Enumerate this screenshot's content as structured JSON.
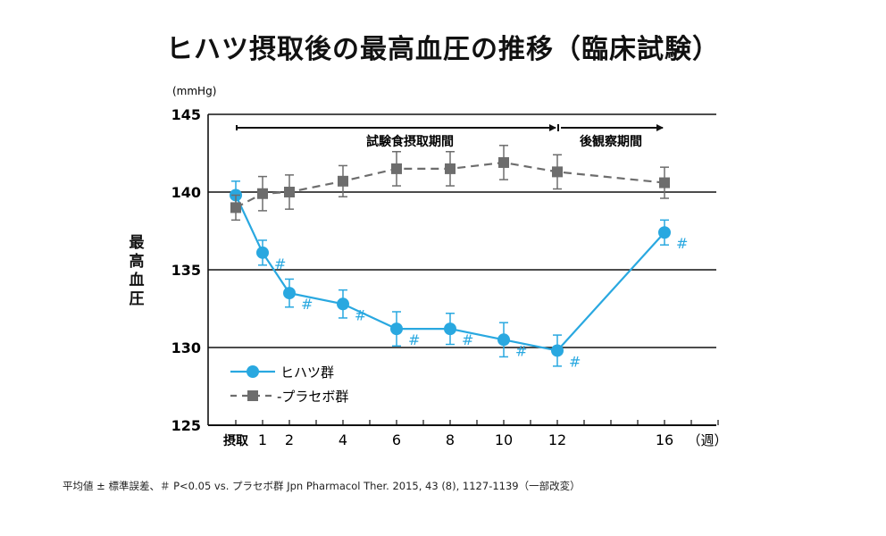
{
  "chart_data": {
    "type": "line",
    "title": "ヒハツ摂取後の最高血圧の推移（臨床試験）",
    "ylabel": "最高血圧",
    "yunit": "(mmHg)",
    "xunit": "（週）",
    "ylim": [
      125,
      145
    ],
    "yticks": [
      125,
      130,
      135,
      140,
      145
    ],
    "xticks": [
      {
        "x": 0,
        "label": "摂取"
      },
      {
        "x": 1,
        "label": "1"
      },
      {
        "x": 2,
        "label": "2"
      },
      {
        "x": 4,
        "label": "4"
      },
      {
        "x": 6,
        "label": "6"
      },
      {
        "x": 8,
        "label": "8"
      },
      {
        "x": 10,
        "label": "10"
      },
      {
        "x": 12,
        "label": "12"
      },
      {
        "x": 16,
        "label": "16"
      }
    ],
    "grid": "horizontal",
    "legend_position": "bottom-left",
    "periods": [
      {
        "label": "試験食摂取期間",
        "from": 0,
        "to": 12
      },
      {
        "label": "後観察期間",
        "from": 12,
        "to": 16
      }
    ],
    "series": [
      {
        "name": "ヒハツ群",
        "color": "#29a8e0",
        "style": "solid",
        "marker": "circle",
        "x": [
          0,
          1,
          2,
          4,
          6,
          8,
          10,
          12,
          16
        ],
        "y": [
          139.8,
          136.1,
          133.5,
          132.8,
          131.2,
          131.2,
          130.5,
          129.8,
          137.4
        ],
        "err": [
          0.9,
          0.8,
          0.9,
          0.9,
          1.1,
          1.0,
          1.1,
          1.0,
          0.8
        ],
        "significance": [
          false,
          true,
          true,
          true,
          true,
          true,
          true,
          true,
          true
        ],
        "significance_mark": "#"
      },
      {
        "name": "プラセボ群",
        "color": "#6d6d6d",
        "style": "dashed",
        "marker": "square",
        "x": [
          0,
          1,
          2,
          4,
          6,
          8,
          10,
          12,
          16
        ],
        "y": [
          139.0,
          139.9,
          140.0,
          140.7,
          141.5,
          141.5,
          141.9,
          141.3,
          140.6
        ],
        "err": [
          0.8,
          1.1,
          1.1,
          1.0,
          1.1,
          1.1,
          1.1,
          1.1,
          1.0
        ]
      }
    ]
  },
  "legend": {
    "hihatsu": "ヒハツ群",
    "placebo": "-プラセボ群"
  },
  "footnote": "平均値 ± 標準誤差、＃ P<0.05 vs. プラセボ群 Jpn Pharmacol Ther. 2015, 43 (8), 1127-1139（一部改変）"
}
